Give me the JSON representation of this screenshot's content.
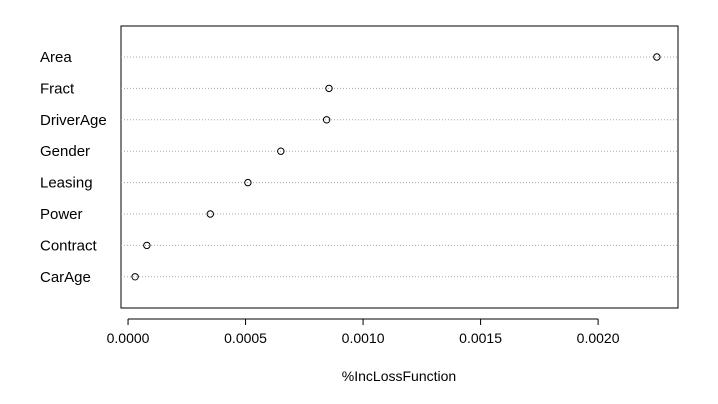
{
  "chart_data": {
    "type": "scatter",
    "subtype": "dotchart",
    "categories": [
      "Area",
      "Fract",
      "DriverAge",
      "Gender",
      "Leasing",
      "Power",
      "Contract",
      "CarAge"
    ],
    "values": [
      0.00225,
      0.000855,
      0.000845,
      0.00065,
      0.00051,
      0.00035,
      8e-05,
      3e-05
    ],
    "xlabel": "%IncLossFunction",
    "ylabel": "",
    "xlim": [
      -3e-05,
      0.00234
    ],
    "xticks": [
      0.0,
      0.0005,
      0.001,
      0.0015,
      0.002
    ],
    "xtick_labels": [
      "0.0000",
      "0.0005",
      "0.0010",
      "0.0015",
      "0.0020"
    ],
    "grid": "dotted horizontal guide lines per category",
    "marker": "open circle"
  }
}
